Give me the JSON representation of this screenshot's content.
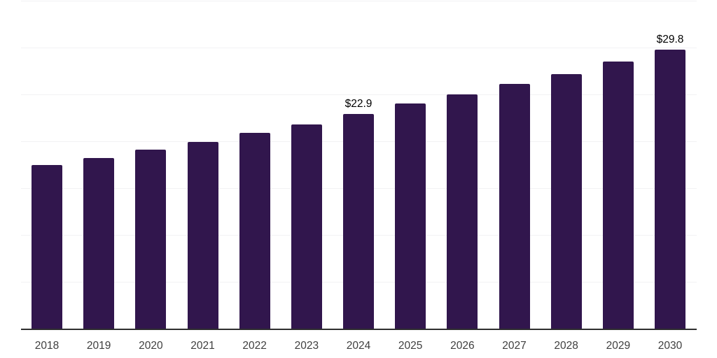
{
  "chart_data": {
    "type": "bar",
    "title": "",
    "xlabel": "",
    "ylabel": "",
    "categories": [
      "2018",
      "2019",
      "2020",
      "2021",
      "2022",
      "2023",
      "2024",
      "2025",
      "2026",
      "2027",
      "2028",
      "2029",
      "2030"
    ],
    "values": [
      17.5,
      18.2,
      19.1,
      19.9,
      20.9,
      21.8,
      22.9,
      24.0,
      25.0,
      26.1,
      27.2,
      28.5,
      29.8
    ],
    "data_labels": [
      "",
      "",
      "",
      "",
      "",
      "",
      "$22.9",
      "",
      "",
      "",
      "",
      "",
      "$29.8"
    ],
    "ylim": [
      0,
      35
    ],
    "grid_step": 5,
    "grid": true,
    "legend": "none",
    "colors": {
      "bar": "#31164d",
      "axis_line": "#2f2f2f",
      "tick_label": "#3f3f3f",
      "value_label": "#000000",
      "gridline": "#f2f2f4",
      "background": "#ffffff"
    }
  }
}
